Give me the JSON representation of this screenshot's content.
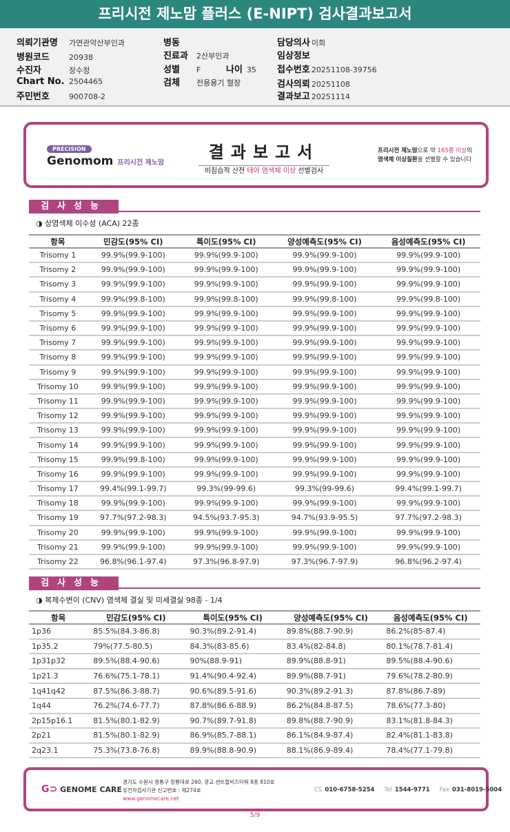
{
  "title": "프리시전 제노맘 플러스 (E-NIPT) 검사결과보고서",
  "info": {
    "institution": {
      "label": "의뢰기관명",
      "value": "가연관악산부인과"
    },
    "hospital_code": {
      "label": "병원코드",
      "value": "20938"
    },
    "patient": {
      "label": "수진자",
      "value": "장수정"
    },
    "chart_no": {
      "label": "Chart No.",
      "value": "2504465"
    },
    "resident_no": {
      "label": "주민번호",
      "value": "900708-2"
    },
    "ward": {
      "label": "병동",
      "value": ""
    },
    "department": {
      "label": "진료과",
      "value": "2산부인과"
    },
    "sex": {
      "label": "성별",
      "value": "F"
    },
    "age": {
      "label": "나이",
      "value": "35"
    },
    "specimen": {
      "label": "검체",
      "value": "전용용기 혈장"
    },
    "doctor": {
      "label": "담당의사",
      "value": "이희"
    },
    "clinical": {
      "label": "임상정보",
      "value": ""
    },
    "receipt_no": {
      "label": "접수번호",
      "value": "20251108-39756"
    },
    "request_date": {
      "label": "검사의뢰",
      "value": "20251108"
    },
    "report_date": {
      "label": "결과보고",
      "value": "20251114"
    }
  },
  "banner": {
    "precision": "PRECISION",
    "brand": "Genomom",
    "brand_sub": "프리시전 제노맘",
    "title": "결과보고서",
    "subtitle_a": "비침습적 산전 ",
    "subtitle_b": "태아 염색체 이상",
    "subtitle_c": " 선별검사",
    "note_a": "프리시전 제노맘",
    "note_b": "으로 약 ",
    "note_c": "165종 이상",
    "note_d": "의",
    "note_e": "염색체 이상질환",
    "note_f": "을 선별할 수 있습니다"
  },
  "section1": {
    "header": "검사성능",
    "subtitle": "◑ 상염색체 이수성 (ACA) 22종",
    "columns": [
      "항목",
      "민감도(95% CI)",
      "특이도(95% CI)",
      "양성예측도(95% CI)",
      "음성예측도(95% CI)"
    ],
    "rows": [
      [
        "Trisomy 1",
        "99.9%(99.9-100)",
        "99.9%(99.9-100)",
        "99.9%(99.9-100)",
        "99.9%(99.9-100)"
      ],
      [
        "Trisomy 2",
        "99.9%(99.9-100)",
        "99.9%(99.9-100)",
        "99.9%(99.9-100)",
        "99.9%(99.9-100)"
      ],
      [
        "Trisomy 3",
        "99.9%(99.9-100)",
        "99.9%(99.9-100)",
        "99.9%(99.9-100)",
        "99.9%(99.9-100)"
      ],
      [
        "Trisomy 4",
        "99.9%(99.8-100)",
        "99.9%(99.8-100)",
        "99.9%(99.8-100)",
        "99.9%(99.8-100)"
      ],
      [
        "Trisomy 5",
        "99.9%(99.9-100)",
        "99.9%(99.9-100)",
        "99.9%(99.9-100)",
        "99.9%(99.9-100)"
      ],
      [
        "Trisomy 6",
        "99.9%(99.9-100)",
        "99.9%(99.9-100)",
        "99.9%(99.9-100)",
        "99.9%(99.9-100)"
      ],
      [
        "Trisomy 7",
        "99.9%(99.9-100)",
        "99.9%(99.9-100)",
        "99.9%(99.9-100)",
        "99.9%(99.9-100)"
      ],
      [
        "Trisomy 8",
        "99.9%(99.9-100)",
        "99.9%(99.9-100)",
        "99.9%(99.9-100)",
        "99.9%(99.9-100)"
      ],
      [
        "Trisomy 9",
        "99.9%(99.9-100)",
        "99.9%(99.9-100)",
        "99.9%(99.9-100)",
        "99.9%(99.9-100)"
      ],
      [
        "Trisomy 10",
        "99.9%(99.9-100)",
        "99.9%(99.9-100)",
        "99.9%(99.9-100)",
        "99.9%(99.9-100)"
      ],
      [
        "Trisomy 11",
        "99.9%(99.9-100)",
        "99.9%(99.9-100)",
        "99.9%(99.9-100)",
        "99.9%(99.9-100)"
      ],
      [
        "Trisomy 12",
        "99.9%(99.9-100)",
        "99.9%(99.9-100)",
        "99.9%(99.9-100)",
        "99.9%(99.9-100)"
      ],
      [
        "Trisomy 13",
        "99.9%(99.9-100)",
        "99.9%(99.9-100)",
        "99.9%(99.9-100)",
        "99.9%(99.9-100)"
      ],
      [
        "Trisomy 14",
        "99.9%(99.9-100)",
        "99.9%(99.9-100)",
        "99.9%(99.9-100)",
        "99.9%(99.9-100)"
      ],
      [
        "Trisomy 15",
        "99.9%(99.8-100)",
        "99.9%(99.9-100)",
        "99.9%(99.9-100)",
        "99.9%(99.9-100)"
      ],
      [
        "Trisomy 16",
        "99.9%(99.9-100)",
        "99.9%(99.9-100)",
        "99.9%(99.9-100)",
        "99.9%(99.9-100)"
      ],
      [
        "Trisomy 17",
        "99.4%(99.1-99.7)",
        "99.3%(99-99.6)",
        "99.3%(99-99.6)",
        "99.4%(99.1-99.7)"
      ],
      [
        "Trisomy 18",
        "99.9%(99.9-100)",
        "99.9%(99.9-100)",
        "99.9%(99.9-100)",
        "99.9%(99.9-100)"
      ],
      [
        "Trisomy 19",
        "97.7%(97.2-98.3)",
        "94.5%(93.7-95.3)",
        "94.7%(93.9-95.5)",
        "97.7%(97.2-98.3)"
      ],
      [
        "Trisomy 20",
        "99.9%(99.9-100)",
        "99.9%(99.9-100)",
        "99.9%(99.9-100)",
        "99.9%(99.9-100)"
      ],
      [
        "Trisomy 21",
        "99.9%(99.9-100)",
        "99.9%(99.9-100)",
        "99.9%(99.9-100)",
        "99.9%(99.9-100)"
      ],
      [
        "Trisomy 22",
        "96.8%(96.1-97.4)",
        "97.3%(96.8-97.9)",
        "97.3%(96.7-97.9)",
        "96.8%(96.2-97.4)"
      ]
    ]
  },
  "section2": {
    "header": "검사성능",
    "subtitle": "◑ 복제수변이 (CNV) 염색체 결실 및 미세결실 98종 - 1/4",
    "columns": [
      "항목",
      "민감도(95% CI)",
      "특이도(95% CI)",
      "양성예측도(95% CI)",
      "음성예측도(95% CI)"
    ],
    "rows": [
      [
        "1p36",
        "85.5%(84.3-86.8)",
        "90.3%(89.2-91.4)",
        "89.8%(88.7-90.9)",
        "86.2%(85-87.4)"
      ],
      [
        "1p35.2",
        "79%(77.5-80.5)",
        "84.3%(83-85.6)",
        "83.4%(82-84.8)",
        "80.1%(78.7-81.4)"
      ],
      [
        "1p31p32",
        "89.5%(88.4-90.6)",
        "90%(88.9-91)",
        "89.9%(88.8-91)",
        "89.5%(88.4-90.6)"
      ],
      [
        "1p21.3",
        "76.6%(75.1-78.1)",
        "91.4%(90.4-92.4)",
        "89.9%(88.7-91)",
        "79.6%(78.2-80.9)"
      ],
      [
        "1q41q42",
        "87.5%(86.3-88.7)",
        "90.6%(89.5-91.6)",
        "90.3%(89.2-91.3)",
        "87.8%(86.7-89)"
      ],
      [
        "1q44",
        "76.2%(74.6-77.7)",
        "87.8%(86.6-88.9)",
        "86.2%(84.8-87.5)",
        "78.6%(77.3-80)"
      ],
      [
        "2p15p16.1",
        "81.5%(80.1-82.9)",
        "90.7%(89.7-91.8)",
        "89.8%(88.7-90.9)",
        "83.1%(81.8-84.3)"
      ],
      [
        "2p21",
        "81.5%(80.1-82.9)",
        "86.9%(85.7-88.1)",
        "86.1%(84.9-87.4)",
        "82.4%(81.1-83.8)"
      ],
      [
        "2q23.1",
        "75.3%(73.8-76.8)",
        "89.9%(88.8-90.9)",
        "88.1%(86.9-89.4)",
        "78.4%(77.1-79.8)"
      ]
    ]
  },
  "footer": {
    "logo": "GENOME CARE",
    "address1": "경기도 수원시 영통구 창룡대로 260, 광교 센트럴비즈타워 8층 810호",
    "address2": "유전자검사기관 신고번호 : 제274호",
    "website": "www.genomecare.net",
    "cs_label": "CS",
    "cs": "010-6758-5254",
    "tel_label": "Tel",
    "tel": "1544-9771",
    "fax_label": "Fax",
    "fax": "031-8019-5004"
  },
  "page": "5/9",
  "colors": {
    "title_bar": "#2b877e",
    "accent": "#b0457e"
  }
}
